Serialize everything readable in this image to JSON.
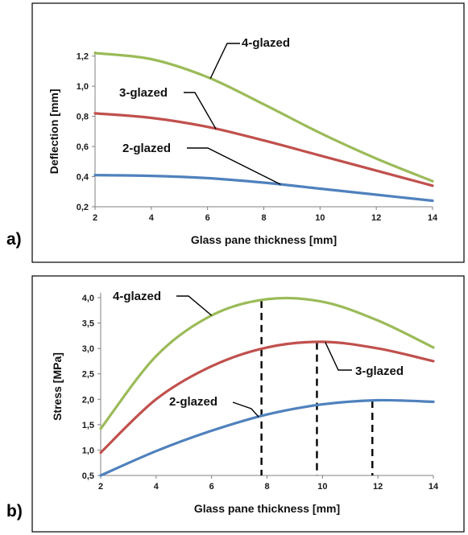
{
  "chart_data": [
    {
      "type": "line",
      "panel_label": "a)",
      "xlabel": "Glass pane thickness [mm]",
      "ylabel": "Deflection [mm]",
      "xlim": [
        2,
        14
      ],
      "ylim": [
        0.2,
        1.3
      ],
      "xticks": [
        2,
        4,
        6,
        8,
        10,
        12,
        14
      ],
      "yticks": [
        0.2,
        0.4,
        0.6,
        0.8,
        1.0,
        1.2
      ],
      "ytick_labels": [
        "0,2",
        "0,4",
        "0,6",
        "0,8",
        "1,0",
        "1,2"
      ],
      "grid": false,
      "series": [
        {
          "name": "2-glazed",
          "color": "#4f81bd",
          "x": [
            2,
            4,
            6,
            8,
            10,
            12,
            14
          ],
          "y": [
            0.41,
            0.405,
            0.39,
            0.36,
            0.32,
            0.28,
            0.24
          ]
        },
        {
          "name": "3-glazed",
          "color": "#c0504d",
          "x": [
            2,
            4,
            6,
            8,
            10,
            12,
            14
          ],
          "y": [
            0.82,
            0.79,
            0.73,
            0.64,
            0.54,
            0.44,
            0.34
          ]
        },
        {
          "name": "4-glazed",
          "color": "#9bbb59",
          "x": [
            2,
            4,
            6,
            8,
            10,
            12,
            14
          ],
          "y": [
            1.22,
            1.18,
            1.06,
            0.88,
            0.69,
            0.52,
            0.37
          ]
        }
      ]
    },
    {
      "type": "line",
      "panel_label": "b)",
      "xlabel": "Glass pane thickness [mm]",
      "ylabel": "Stress [MPa]",
      "xlim": [
        2,
        14
      ],
      "ylim": [
        0.5,
        4.0
      ],
      "xticks": [
        2,
        4,
        6,
        8,
        10,
        12,
        14
      ],
      "yticks": [
        0.5,
        1.0,
        1.5,
        2.0,
        2.5,
        3.0,
        3.5,
        4.0
      ],
      "ytick_labels": [
        "0,5",
        "1,0",
        "1,5",
        "2,0",
        "2,5",
        "3,0",
        "3,5",
        "4,0"
      ],
      "grid": false,
      "series": [
        {
          "name": "2-glazed",
          "color": "#4f81bd",
          "peak_x": 11.8,
          "x": [
            2,
            4,
            6,
            8,
            10,
            12,
            14
          ],
          "y": [
            0.5,
            0.98,
            1.38,
            1.7,
            1.9,
            1.98,
            1.95
          ]
        },
        {
          "name": "3-glazed",
          "color": "#c0504d",
          "peak_x": 9.8,
          "x": [
            2,
            4,
            6,
            8,
            10,
            12,
            14
          ],
          "y": [
            0.95,
            2.0,
            2.65,
            3.02,
            3.13,
            3.0,
            2.75
          ]
        },
        {
          "name": "4-glazed",
          "color": "#9bbb59",
          "peak_x": 7.8,
          "x": [
            2,
            4,
            6,
            8,
            10,
            12,
            14
          ],
          "y": [
            1.42,
            2.85,
            3.65,
            3.97,
            3.92,
            3.55,
            3.02
          ]
        }
      ]
    }
  ]
}
